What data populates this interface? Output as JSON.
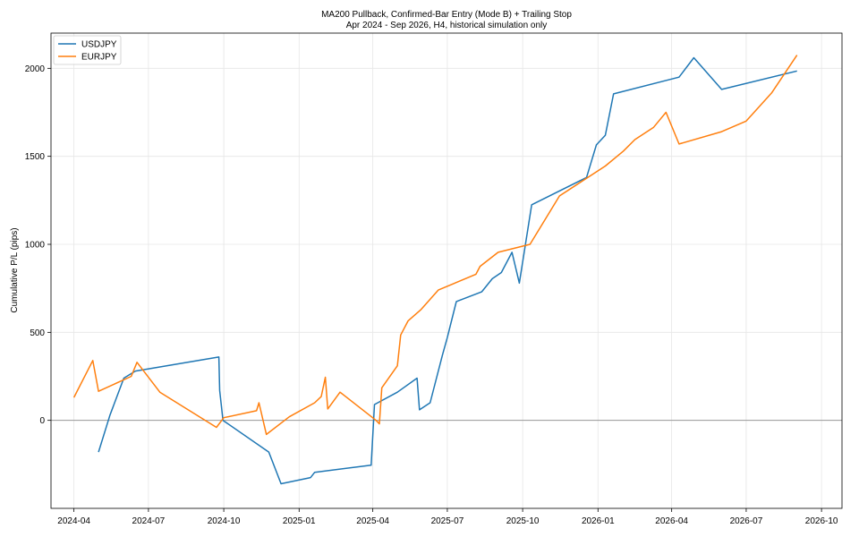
{
  "chart_data": {
    "type": "line",
    "title": "MA200 Pullback, Confirmed-Bar Entry (Mode B) + Trailing Stop",
    "subtitle": "Apr 2024 - Sep 2026, H4, historical simulation only",
    "xlabel": "",
    "ylabel": "Cumulative P/L (pips)",
    "xlim": [
      "2024-03-04",
      "2026-10-26"
    ],
    "ylim": [
      -500,
      2200
    ],
    "x_ticks": [
      "2024-04-01",
      "2024-07-01",
      "2024-10-01",
      "2025-01-01",
      "2025-04-01",
      "2025-07-01",
      "2025-10-01",
      "2026-01-01",
      "2026-04-01",
      "2026-07-01",
      "2026-10-01"
    ],
    "x_tick_labels": [
      "2024-04",
      "2024-07",
      "2024-10",
      "2025-01",
      "2025-04",
      "2025-07",
      "2025-10",
      "2026-01",
      "2026-04",
      "2026-07",
      "2026-10"
    ],
    "y_ticks": [
      0,
      500,
      1000,
      1500,
      2000
    ],
    "y_tick_labels": [
      "0",
      "500",
      "1000",
      "1500",
      "2000"
    ],
    "grid": true,
    "zero_line": true,
    "legend": "top-left",
    "series": [
      {
        "name": "USDJPY",
        "color": "#1f77b4",
        "points": [
          [
            "2024-05-01",
            -180
          ],
          [
            "2024-05-15",
            30
          ],
          [
            "2024-06-01",
            240
          ],
          [
            "2024-06-15",
            280
          ],
          [
            "2024-09-25",
            360
          ],
          [
            "2024-09-26",
            170
          ],
          [
            "2024-09-30",
            0
          ],
          [
            "2024-11-25",
            -180
          ],
          [
            "2024-12-10",
            -360
          ],
          [
            "2025-01-15",
            -325
          ],
          [
            "2025-01-20",
            -295
          ],
          [
            "2025-03-30",
            -255
          ],
          [
            "2025-04-03",
            90
          ],
          [
            "2025-05-01",
            160
          ],
          [
            "2025-05-25",
            240
          ],
          [
            "2025-05-28",
            60
          ],
          [
            "2025-06-10",
            100
          ],
          [
            "2025-06-25",
            370
          ],
          [
            "2025-07-01",
            470
          ],
          [
            "2025-07-12",
            675
          ],
          [
            "2025-08-12",
            730
          ],
          [
            "2025-08-25",
            805
          ],
          [
            "2025-09-05",
            840
          ],
          [
            "2025-09-18",
            955
          ],
          [
            "2025-09-27",
            780
          ],
          [
            "2025-10-12",
            1225
          ],
          [
            "2025-12-18",
            1380
          ],
          [
            "2025-12-30",
            1565
          ],
          [
            "2026-01-10",
            1620
          ],
          [
            "2026-01-20",
            1855
          ],
          [
            "2026-04-10",
            1950
          ],
          [
            "2026-04-28",
            2060
          ],
          [
            "2026-06-01",
            1880
          ],
          [
            "2026-09-01",
            1985
          ]
        ]
      },
      {
        "name": "EURJPY",
        "color": "#ff7f0e",
        "points": [
          [
            "2024-04-01",
            130
          ],
          [
            "2024-04-24",
            340
          ],
          [
            "2024-05-01",
            165
          ],
          [
            "2024-06-10",
            250
          ],
          [
            "2024-06-17",
            330
          ],
          [
            "2024-07-15",
            160
          ],
          [
            "2024-09-22",
            -40
          ],
          [
            "2024-10-01",
            15
          ],
          [
            "2024-11-10",
            55
          ],
          [
            "2024-11-13",
            100
          ],
          [
            "2024-11-22",
            -80
          ],
          [
            "2024-12-20",
            20
          ],
          [
            "2025-01-20",
            100
          ],
          [
            "2025-01-28",
            135
          ],
          [
            "2025-02-02",
            245
          ],
          [
            "2025-02-05",
            65
          ],
          [
            "2025-02-20",
            160
          ],
          [
            "2025-04-05",
            0
          ],
          [
            "2025-04-09",
            -20
          ],
          [
            "2025-04-12",
            185
          ],
          [
            "2025-05-01",
            310
          ],
          [
            "2025-05-05",
            485
          ],
          [
            "2025-05-14",
            565
          ],
          [
            "2025-05-30",
            630
          ],
          [
            "2025-06-20",
            740
          ],
          [
            "2025-08-05",
            830
          ],
          [
            "2025-08-10",
            875
          ],
          [
            "2025-09-01",
            955
          ],
          [
            "2025-10-10",
            1000
          ],
          [
            "2025-11-15",
            1275
          ],
          [
            "2026-01-10",
            1445
          ],
          [
            "2026-02-01",
            1530
          ],
          [
            "2026-02-15",
            1595
          ],
          [
            "2026-03-10",
            1665
          ],
          [
            "2026-03-25",
            1750
          ],
          [
            "2026-04-10",
            1570
          ],
          [
            "2026-06-01",
            1640
          ],
          [
            "2026-07-01",
            1700
          ],
          [
            "2026-08-01",
            1860
          ],
          [
            "2026-09-01",
            2075
          ]
        ]
      }
    ]
  }
}
